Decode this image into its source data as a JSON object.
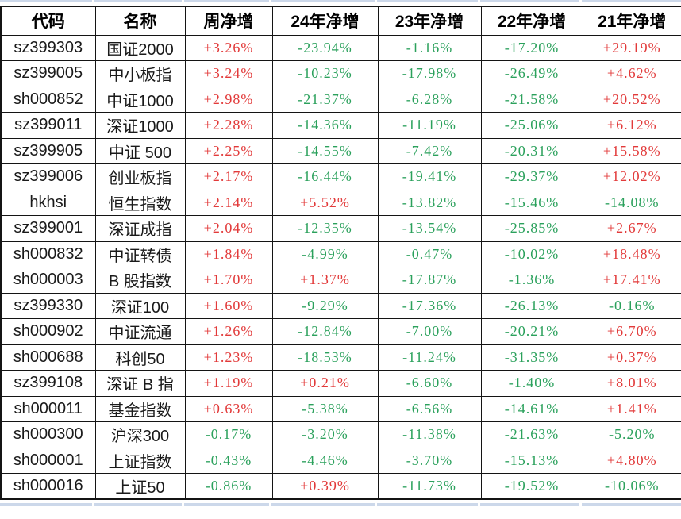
{
  "colors": {
    "positive": "#e23a3a",
    "negative": "#2ba15c",
    "grid_border": "#141414",
    "edge_strip": "#ccd8ea"
  },
  "table": {
    "columns": [
      {
        "key": "code",
        "label": "代码",
        "type": "text"
      },
      {
        "key": "name",
        "label": "名称",
        "type": "text"
      },
      {
        "key": "week",
        "label": "周净增",
        "type": "value"
      },
      {
        "key": "y24",
        "label": "24年净增",
        "type": "value"
      },
      {
        "key": "y23",
        "label": "23年净增",
        "type": "value"
      },
      {
        "key": "y22",
        "label": "22年净增",
        "type": "value"
      },
      {
        "key": "y21",
        "label": "21年净增",
        "type": "value"
      }
    ],
    "rows": [
      {
        "code": "sz399303",
        "name": "国证2000",
        "week": "+3.26%",
        "y24": "-23.94%",
        "y23": "-1.16%",
        "y22": "-17.20%",
        "y21": "+29.19%"
      },
      {
        "code": "sz399005",
        "name": "中小板指",
        "week": "+3.24%",
        "y24": "-10.23%",
        "y23": "-17.98%",
        "y22": "-26.49%",
        "y21": "+4.62%"
      },
      {
        "code": "sh000852",
        "name": "中证1000",
        "week": "+2.98%",
        "y24": "-21.37%",
        "y23": "-6.28%",
        "y22": "-21.58%",
        "y21": "+20.52%"
      },
      {
        "code": "sz399011",
        "name": "深证1000",
        "week": "+2.28%",
        "y24": "-14.36%",
        "y23": "-11.19%",
        "y22": "-25.06%",
        "y21": "+6.12%"
      },
      {
        "code": "sz399905",
        "name": "中证 500",
        "week": "+2.25%",
        "y24": "-14.55%",
        "y23": "-7.42%",
        "y22": "-20.31%",
        "y21": "+15.58%"
      },
      {
        "code": "sz399006",
        "name": "创业板指",
        "week": "+2.17%",
        "y24": "-16.44%",
        "y23": "-19.41%",
        "y22": "-29.37%",
        "y21": "+12.02%"
      },
      {
        "code": "hkhsi",
        "name": "恒生指数",
        "week": "+2.14%",
        "y24": "+5.52%",
        "y23": "-13.82%",
        "y22": "-15.46%",
        "y21": "-14.08%"
      },
      {
        "code": "sz399001",
        "name": "深证成指",
        "week": "+2.04%",
        "y24": "-12.35%",
        "y23": "-13.54%",
        "y22": "-25.85%",
        "y21": "+2.67%"
      },
      {
        "code": "sh000832",
        "name": "中证转债",
        "week": "+1.84%",
        "y24": "-4.99%",
        "y23": "-0.47%",
        "y22": "-10.02%",
        "y21": "+18.48%"
      },
      {
        "code": "sh000003",
        "name": "B 股指数",
        "week": "+1.70%",
        "y24": "+1.37%",
        "y23": "-17.87%",
        "y22": "-1.36%",
        "y21": "+17.41%"
      },
      {
        "code": "sz399330",
        "name": "深证100",
        "week": "+1.60%",
        "y24": "-9.29%",
        "y23": "-17.36%",
        "y22": "-26.13%",
        "y21": "-0.16%"
      },
      {
        "code": "sh000902",
        "name": "中证流通",
        "week": "+1.26%",
        "y24": "-12.84%",
        "y23": "-7.00%",
        "y22": "-20.21%",
        "y21": "+6.70%"
      },
      {
        "code": "sh000688",
        "name": "科创50",
        "week": "+1.23%",
        "y24": "-18.53%",
        "y23": "-11.24%",
        "y22": "-31.35%",
        "y21": "+0.37%"
      },
      {
        "code": "sz399108",
        "name": "深证 B 指",
        "week": "+1.19%",
        "y24": "+0.21%",
        "y23": "-6.60%",
        "y22": "-1.40%",
        "y21": "+8.01%"
      },
      {
        "code": "sh000011",
        "name": "基金指数",
        "week": "+0.63%",
        "y24": "-5.38%",
        "y23": "-6.56%",
        "y22": "-14.61%",
        "y21": "+1.41%"
      },
      {
        "code": "sh000300",
        "name": "沪深300",
        "week": "-0.17%",
        "y24": "-3.20%",
        "y23": "-11.38%",
        "y22": "-21.63%",
        "y21": "-5.20%"
      },
      {
        "code": "sh000001",
        "name": "上证指数",
        "week": "-0.43%",
        "y24": "-4.46%",
        "y23": "-3.70%",
        "y22": "-15.13%",
        "y21": "+4.80%"
      },
      {
        "code": "sh000016",
        "name": "上证50",
        "week": "-0.86%",
        "y24": "+0.39%",
        "y23": "-11.73%",
        "y22": "-19.52%",
        "y21": "-10.06%"
      }
    ]
  }
}
